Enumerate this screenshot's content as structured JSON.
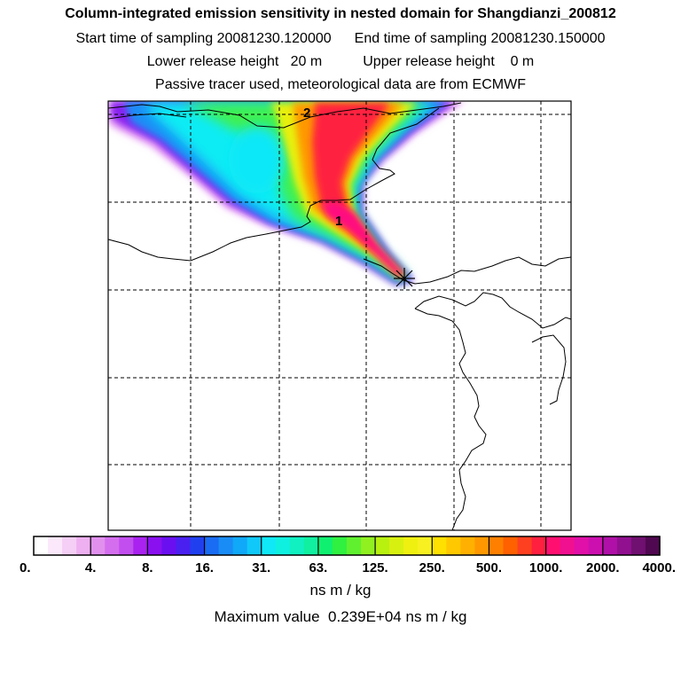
{
  "chart_data": {
    "type": "heatmap",
    "title": "Column-integrated emission sensitivity in nested domain for Shangdianzi_200812",
    "info": {
      "start_label": "Start time of sampling",
      "start_value": "20081230.120000",
      "end_label": "End time of sampling",
      "end_value": "20081230.150000",
      "lower_label": "Lower release height",
      "lower_value": "20 m",
      "upper_label": "Upper release height",
      "upper_value": "0 m",
      "tracer_note": "Passive tracer used, meteorological data are from ECMWF"
    },
    "colorbar": {
      "tick_labels": [
        "0.",
        "4.",
        "8.",
        "16.",
        "31.",
        "63.",
        "125.",
        "250.",
        "500.",
        "1000.",
        "2000.",
        "4000."
      ],
      "unit": "ns m / kg",
      "colors": [
        "#ffffff",
        "#fbe8fb",
        "#f5cff5",
        "#eeb0f0",
        "#e190ee",
        "#d46eee",
        "#c24ef0",
        "#aa22f0",
        "#8a10f0",
        "#6a10f0",
        "#4a20f0",
        "#2040f0",
        "#1a6cf4",
        "#1a8cf6",
        "#10a8f8",
        "#10c8fa",
        "#10e8f8",
        "#10f0e0",
        "#10f0c0",
        "#10f0a0",
        "#10f070",
        "#30f040",
        "#60f030",
        "#90f020",
        "#b8f010",
        "#d8f010",
        "#f0f010",
        "#f8f020",
        "#ffe000",
        "#ffc800",
        "#ffb000",
        "#ff9800",
        "#ff8000",
        "#ff6000",
        "#ff4020",
        "#ff2040",
        "#ff1070",
        "#f01090",
        "#e010a8",
        "#cc10b0",
        "#b010a8",
        "#901090",
        "#701070",
        "#500850"
      ]
    },
    "maximum": {
      "label": "Maximum value",
      "value": "0.239E+04",
      "unit": "ns m / kg"
    },
    "contour_labels": [
      "1",
      "2"
    ],
    "receptor": "Shangdianzi",
    "grid": true
  }
}
